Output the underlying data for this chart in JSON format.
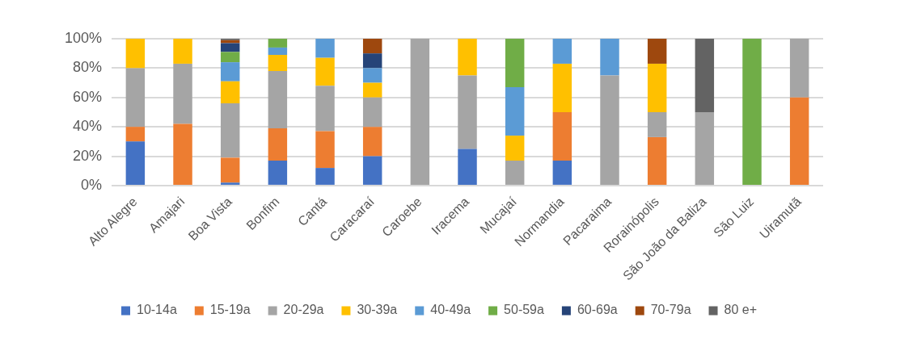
{
  "chart_data": {
    "type": "bar",
    "stacked": true,
    "grid": "y",
    "legend": "bottom",
    "categories": [
      "Alto Alegre",
      "Amajari",
      "Boa Vista",
      "Bonfim",
      "Cantá",
      "Caracaraí",
      "Caroebe",
      "Iracema",
      "Mucajaí",
      "Normandia",
      "Pacaraima",
      "Rorainópolis",
      "São João da Baliza",
      "São Luiz",
      "Uiramutã"
    ],
    "ylim": [
      0,
      100
    ],
    "yticks": [
      {
        "value": 0,
        "label": "0%"
      },
      {
        "value": 20,
        "label": "20%"
      },
      {
        "value": 40,
        "label": "40%"
      },
      {
        "value": 60,
        "label": "60%"
      },
      {
        "value": 80,
        "label": "80%"
      },
      {
        "value": 100,
        "label": "100%"
      }
    ],
    "series": [
      {
        "name": "10-14a",
        "color": "#4472c4",
        "values": [
          30,
          0,
          2,
          17,
          12,
          20,
          0,
          25,
          0,
          17,
          0,
          0,
          0,
          0,
          0
        ]
      },
      {
        "name": "15-19a",
        "color": "#ed7d31",
        "values": [
          10,
          42,
          17,
          22,
          25,
          20,
          0,
          0,
          0,
          33,
          0,
          33,
          0,
          0,
          60
        ]
      },
      {
        "name": "20-29a",
        "color": "#a5a5a5",
        "values": [
          40,
          41,
          37,
          39,
          31,
          20,
          100,
          50,
          17,
          0,
          75,
          17,
          50,
          0,
          40
        ]
      },
      {
        "name": "30-39a",
        "color": "#ffc000",
        "values": [
          20,
          17,
          15,
          11,
          19,
          10,
          0,
          25,
          17,
          33,
          0,
          33,
          0,
          0,
          0
        ]
      },
      {
        "name": "40-49a",
        "color": "#5b9bd5",
        "values": [
          0,
          0,
          13,
          5,
          13,
          10,
          0,
          0,
          33,
          17,
          25,
          0,
          0,
          0,
          0
        ]
      },
      {
        "name": "50-59a",
        "color": "#70ad47",
        "values": [
          0,
          0,
          7,
          6,
          0,
          0,
          0,
          0,
          33,
          0,
          0,
          0,
          0,
          100,
          0
        ]
      },
      {
        "name": "60-69a",
        "color": "#264478",
        "values": [
          0,
          0,
          6,
          0,
          0,
          10,
          0,
          0,
          0,
          0,
          0,
          0,
          0,
          0,
          0
        ]
      },
      {
        "name": "70-79a",
        "color": "#9e480e",
        "values": [
          0,
          0,
          2,
          0,
          0,
          10,
          0,
          0,
          0,
          0,
          0,
          17,
          0,
          0,
          0
        ]
      },
      {
        "name": "80 e+",
        "color": "#636363",
        "values": [
          0,
          0,
          1,
          0,
          0,
          0,
          0,
          0,
          0,
          0,
          0,
          0,
          50,
          0,
          0
        ]
      }
    ]
  }
}
